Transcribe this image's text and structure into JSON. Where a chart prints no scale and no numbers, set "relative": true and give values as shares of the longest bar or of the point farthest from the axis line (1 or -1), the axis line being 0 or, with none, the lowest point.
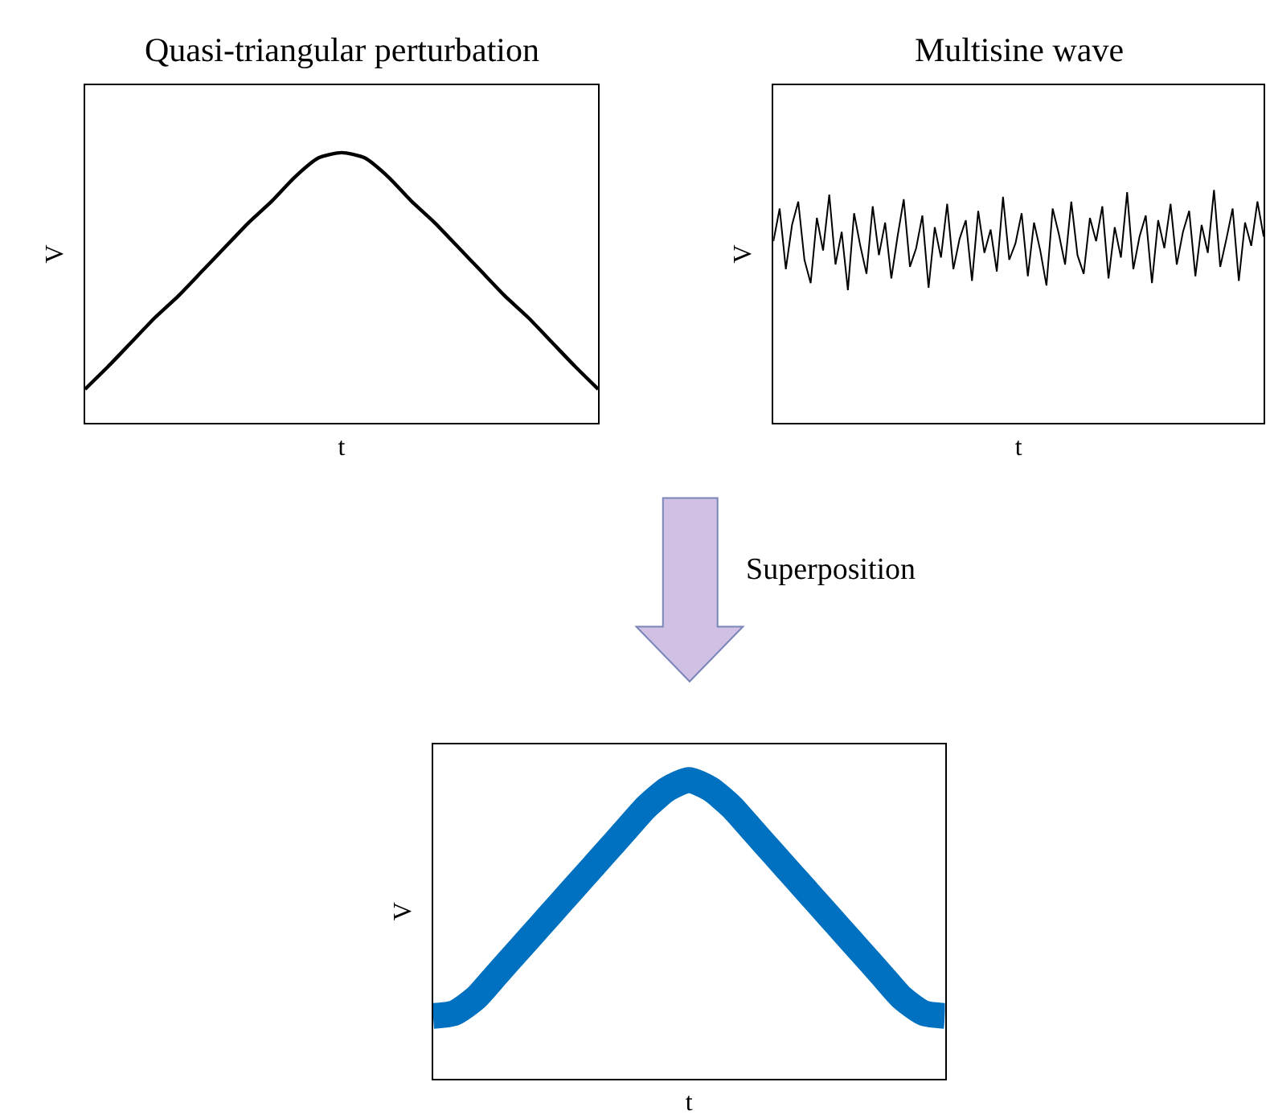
{
  "chart_data": [
    {
      "type": "line",
      "title": "Quasi-triangular perturbation",
      "xlabel": "t",
      "ylabel": "V",
      "relative": true,
      "tick_labels": false,
      "categories": [
        null,
        null,
        null,
        null,
        null,
        null,
        null,
        null,
        null,
        null,
        null,
        null,
        null,
        null,
        null,
        null,
        null,
        null,
        null,
        null,
        null,
        null,
        null
      ],
      "series": [
        {
          "color": "#000000",
          "values": [
            0.125,
            0.21,
            0.3,
            0.39,
            0.47,
            0.56,
            0.65,
            0.74,
            0.82,
            0.91,
            0.98,
            1,
            0.98,
            0.91,
            0.82,
            0.74,
            0.65,
            0.56,
            0.47,
            0.39,
            0.3,
            0.21,
            0.125
          ]
        }
      ]
    },
    {
      "type": "line",
      "title": "Multisine wave",
      "xlabel": "t",
      "ylabel": "V",
      "relative": true,
      "tick_labels": false,
      "categories": [
        null,
        null,
        null,
        null,
        null,
        null,
        null,
        null,
        null,
        null,
        null,
        null,
        null,
        null,
        null,
        null,
        null,
        null,
        null,
        null,
        null,
        null,
        null,
        null,
        null,
        null,
        null,
        null,
        null,
        null,
        null,
        null,
        null,
        null,
        null,
        null,
        null,
        null,
        null,
        null,
        null,
        null,
        null,
        null,
        null,
        null,
        null,
        null,
        null,
        null,
        null,
        null,
        null,
        null,
        null,
        null,
        null,
        null,
        null,
        null,
        null,
        null,
        null,
        null,
        null,
        null,
        null,
        null,
        null,
        null,
        null,
        null,
        null,
        null,
        null,
        null,
        null,
        null,
        null,
        null
      ],
      "series": [
        {
          "color": "#000000",
          "values": [
            0.78,
            0.92,
            0.66,
            0.85,
            0.95,
            0.7,
            0.6,
            0.88,
            0.74,
            0.98,
            0.68,
            0.82,
            0.57,
            0.9,
            0.76,
            0.64,
            0.93,
            0.72,
            0.86,
            0.62,
            0.8,
            0.96,
            0.67,
            0.75,
            0.89,
            0.58,
            0.84,
            0.71,
            0.94,
            0.66,
            0.79,
            0.87,
            0.61,
            0.91,
            0.73,
            0.83,
            0.65,
            0.97,
            0.7,
            0.77,
            0.9,
            0.63,
            0.86,
            0.74,
            0.59,
            0.92,
            0.81,
            0.68,
            0.95,
            0.72,
            0.64,
            0.88,
            0.78,
            0.93,
            0.62,
            0.84,
            0.71,
            0.99,
            0.66,
            0.8,
            0.89,
            0.6,
            0.87,
            0.75,
            0.94,
            0.68,
            0.82,
            0.91,
            0.63,
            0.85,
            0.73,
            1,
            0.67,
            0.79,
            0.92,
            0.61,
            0.86,
            0.76,
            0.95,
            0.8
          ]
        }
      ]
    },
    {
      "type": "line",
      "xlabel": "t",
      "ylabel": "V",
      "relative": true,
      "tick_labels": false,
      "annotations": [
        "Superposition"
      ],
      "categories": [
        null,
        null,
        null,
        null,
        null,
        null,
        null,
        null,
        null,
        null,
        null,
        null,
        null,
        null,
        null,
        null,
        null,
        null,
        null,
        null,
        null,
        null,
        null,
        null,
        null
      ],
      "series": [
        {
          "color": "#0070c0",
          "values": [
            0.21,
            0.22,
            0.27,
            0.35,
            0.43,
            0.51,
            0.59,
            0.67,
            0.75,
            0.83,
            0.91,
            0.97,
            1,
            0.97,
            0.91,
            0.83,
            0.75,
            0.67,
            0.59,
            0.51,
            0.43,
            0.35,
            0.27,
            0.22,
            0.21
          ]
        }
      ]
    }
  ]
}
